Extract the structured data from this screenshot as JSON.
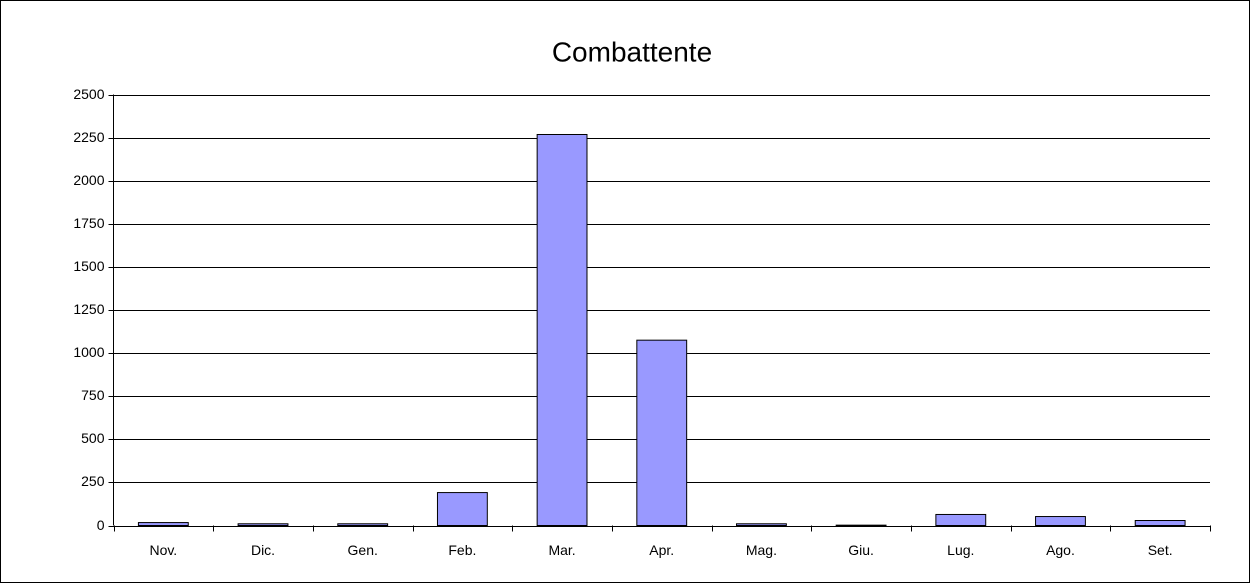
{
  "chart_data": {
    "type": "bar",
    "title": "Combattente",
    "categories": [
      "Nov.",
      "Dic.",
      "Gen.",
      "Feb.",
      "Mar.",
      "Apr.",
      "Mag.",
      "Giu.",
      "Lug.",
      "Ago.",
      "Set."
    ],
    "values": [
      17,
      10,
      10,
      191,
      2268,
      1075,
      10,
      2,
      64,
      52,
      29
    ],
    "color": "#9999ff",
    "ylim": [
      0,
      2500
    ],
    "yticks": [
      0,
      250,
      500,
      750,
      1000,
      1250,
      1500,
      1750,
      2000,
      2250,
      2500
    ],
    "grid": true
  }
}
